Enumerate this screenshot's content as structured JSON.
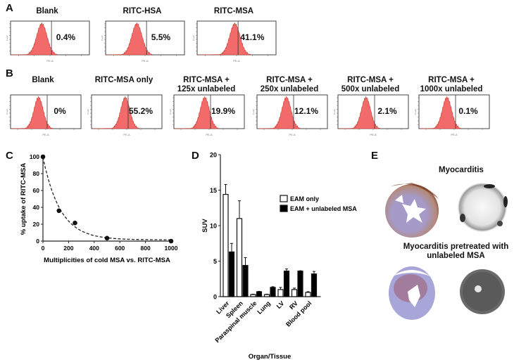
{
  "panels": {
    "A": {
      "label": "A",
      "histograms": [
        {
          "title": "Blank",
          "percent": "0.4%",
          "peak_log": 1.9,
          "gate_log": 2.5
        },
        {
          "title": "RITC-HSA",
          "percent": "5.5%",
          "peak_log": 1.9,
          "gate_log": 2.5
        },
        {
          "title": "RITC-MSA",
          "percent": "41.1%",
          "peak_log": 2.3,
          "gate_log": 2.5
        }
      ],
      "x_axis_label": "PE-A",
      "y_axis_label": "Count"
    },
    "B": {
      "label": "B",
      "histograms": [
        {
          "title": "Blank",
          "percent": "0%",
          "peak_log": 1.9,
          "gate_log": 2.5
        },
        {
          "title": "RITC-MSA only",
          "percent": "55.2%",
          "peak_log": 2.3,
          "gate_log": 2.5
        },
        {
          "title": "RITC-MSA +\n125x unlabeled",
          "percent": "19.9%",
          "peak_log": 2.1,
          "gate_log": 2.5
        },
        {
          "title": "RITC-MSA +\n250x unlabeled",
          "percent": "12.1%",
          "peak_log": 2.0,
          "gate_log": 2.5
        },
        {
          "title": "RITC-MSA +\n500x unlabeled",
          "percent": "2.1%",
          "peak_log": 1.9,
          "gate_log": 2.5
        },
        {
          "title": "RITC-MSA +\n1000x unlabeled",
          "percent": "0.1%",
          "peak_log": 1.9,
          "gate_log": 2.5
        }
      ],
      "x_axis_label": "PE-A",
      "y_axis_label": "Count"
    },
    "E": {
      "label": "E",
      "title_top": "Myocarditis",
      "title_bottom": "Myocarditis pretreated with\nunlabeled MSA"
    }
  },
  "chart_data": [
    {
      "id": "C",
      "label": "C",
      "type": "scatter",
      "x": [
        0,
        125,
        250,
        500,
        1000
      ],
      "y": [
        100,
        36,
        21.5,
        3.5,
        0
      ],
      "fit": "exponential decay (dashed)",
      "xlabel": "Multiplicities of cold MSA vs. RITC-MSA",
      "ylabel": "% uptake of RITC-MSA",
      "xlim": [
        0,
        1000
      ],
      "ylim": [
        0,
        100
      ],
      "xticks": [
        0,
        200,
        400,
        600,
        800,
        1000
      ],
      "yticks": [
        0,
        20,
        40,
        60,
        80,
        100
      ]
    },
    {
      "id": "D",
      "label": "D",
      "type": "bar",
      "categories": [
        "Liver",
        "Spleen",
        "Paraspinal muscle",
        "Lung",
        "LV",
        "RV",
        "Blood pool"
      ],
      "series": [
        {
          "name": "EAM only",
          "color": "#ffffff",
          "values": [
            14.4,
            11.0,
            0.3,
            0.3,
            1.0,
            1.0,
            0.6
          ],
          "errors": [
            1.4,
            2.5,
            0.05,
            0.05,
            0.3,
            0.2,
            0.1
          ]
        },
        {
          "name": "EAM + unlabeled MSA",
          "color": "#000000",
          "values": [
            6.3,
            4.4,
            0.7,
            1.3,
            3.6,
            3.6,
            3.2
          ],
          "errors": [
            1.2,
            1.1,
            0.05,
            0.1,
            0.3,
            0.05,
            0.35
          ]
        }
      ],
      "xlabel": "Organ/Tissue",
      "ylabel": "SUV",
      "ylim": [
        0,
        20
      ],
      "yticks": [
        0,
        5,
        10,
        15,
        20
      ],
      "legend": "right"
    }
  ]
}
